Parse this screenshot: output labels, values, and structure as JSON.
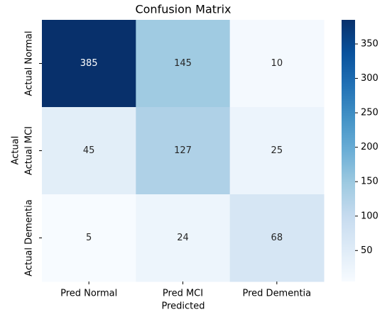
{
  "chart_data": {
    "type": "heatmap",
    "title": "Confusion Matrix",
    "x_label": "Predicted",
    "y_label": "Actual",
    "x_categories": [
      "Pred Normal",
      "Pred MCI",
      "Pred Dementia"
    ],
    "y_categories": [
      "Actual Normal",
      "Actual MCI",
      "Actual Dementia"
    ],
    "values": [
      [
        385,
        145,
        10
      ],
      [
        45,
        127,
        25
      ],
      [
        5,
        24,
        68
      ]
    ],
    "colormap": "Blues",
    "colorbar_lim": [
      5,
      385
    ],
    "colorbar_ticks": [
      50,
      100,
      150,
      200,
      250,
      300,
      350
    ]
  }
}
